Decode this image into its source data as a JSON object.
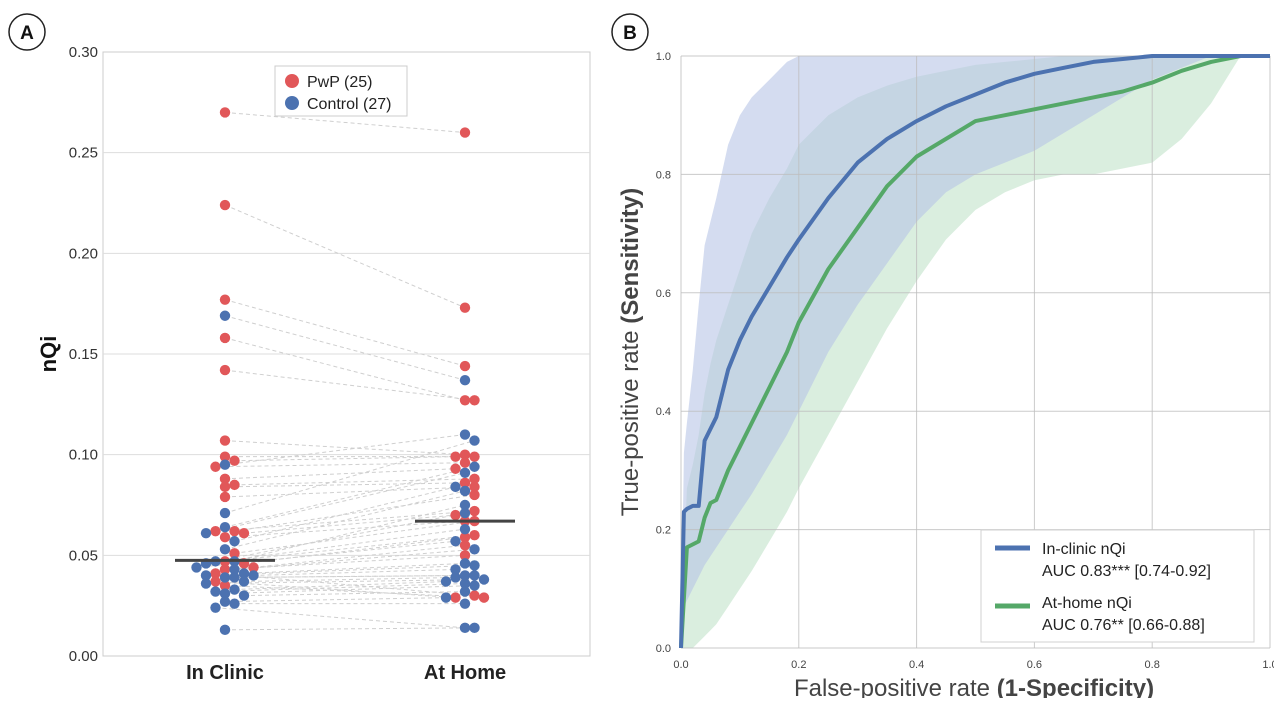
{
  "chart_data": [
    {
      "type": "scatter",
      "panel_label": "A",
      "ylabel": "nQi",
      "ylim": [
        0,
        0.3
      ],
      "yticks": [
        "0.00",
        "0.05",
        "0.10",
        "0.15",
        "0.20",
        "0.25",
        "0.30"
      ],
      "categories": [
        "In Clinic",
        "At Home"
      ],
      "legend": [
        {
          "label": "PwP (25)",
          "color": "#E15759"
        },
        {
          "label": "Control (27)",
          "color": "#4C72B0"
        }
      ],
      "medians": {
        "In Clinic": 0.0475,
        "At Home": 0.067
      },
      "series": [
        {
          "name": "PwP (25)",
          "in_clinic": [
            0.27,
            0.224,
            0.177,
            0.158,
            0.142,
            0.107,
            0.099,
            0.097,
            0.094,
            0.088,
            0.085,
            0.084,
            0.079,
            0.062,
            0.062,
            0.061,
            0.059,
            0.051,
            0.047,
            0.046,
            0.044,
            0.043,
            0.041,
            0.037,
            0.035
          ],
          "at_home": [
            0.26,
            0.173,
            0.144,
            0.127,
            0.127,
            0.1,
            0.099,
            0.099,
            0.096,
            0.093,
            0.088,
            0.086,
            0.084,
            0.08,
            0.072,
            0.07,
            0.067,
            0.067,
            0.06,
            0.059,
            0.055,
            0.05,
            0.03,
            0.029,
            0.029
          ]
        },
        {
          "name": "Control (27)",
          "in_clinic": [
            0.169,
            0.095,
            0.071,
            0.064,
            0.061,
            0.057,
            0.053,
            0.047,
            0.047,
            0.046,
            0.044,
            0.043,
            0.041,
            0.04,
            0.04,
            0.039,
            0.039,
            0.037,
            0.036,
            0.033,
            0.032,
            0.031,
            0.03,
            0.027,
            0.026,
            0.024,
            0.013
          ],
          "at_home": [
            0.137,
            0.11,
            0.107,
            0.094,
            0.091,
            0.084,
            0.082,
            0.075,
            0.071,
            0.063,
            0.057,
            0.053,
            0.046,
            0.045,
            0.043,
            0.04,
            0.04,
            0.039,
            0.038,
            0.037,
            0.036,
            0.035,
            0.032,
            0.029,
            0.026,
            0.014,
            0.014
          ]
        }
      ]
    },
    {
      "type": "line",
      "panel_label": "B",
      "xlabel_prefix": "False-positive rate ",
      "xlabel_bold": "(1-Specificity)",
      "ylabel_prefix": "True-positive rate ",
      "ylabel_bold": "(Sensitivity)",
      "xlim": [
        0,
        1.0
      ],
      "ylim": [
        0,
        1.0
      ],
      "xticks": [
        "0.0",
        "0.2",
        "0.4",
        "0.6",
        "0.8",
        "1.0"
      ],
      "yticks": [
        "0.0",
        "0.2",
        "0.4",
        "0.6",
        "0.8",
        "1.0"
      ],
      "grid": true,
      "legend_position": "bottom-right",
      "series": [
        {
          "name": "In-clinic nQi",
          "auc_text": "AUC 0.83*** [0.74-0.92]",
          "color": "#4C72B0",
          "band_color": "#B8C4E6",
          "x": [
            0.0,
            0.005,
            0.01,
            0.02,
            0.03,
            0.04,
            0.06,
            0.08,
            0.1,
            0.12,
            0.15,
            0.18,
            0.2,
            0.25,
            0.3,
            0.35,
            0.4,
            0.45,
            0.5,
            0.55,
            0.6,
            0.65,
            0.7,
            0.75,
            0.8,
            0.85,
            0.9,
            1.0
          ],
          "y": [
            0.0,
            0.23,
            0.235,
            0.24,
            0.24,
            0.35,
            0.39,
            0.47,
            0.52,
            0.56,
            0.61,
            0.66,
            0.69,
            0.76,
            0.82,
            0.86,
            0.89,
            0.915,
            0.935,
            0.955,
            0.97,
            0.98,
            0.99,
            0.995,
            1.0,
            1.0,
            1.0,
            1.0
          ],
          "upper": [
            0.0,
            0.33,
            0.38,
            0.47,
            0.58,
            0.68,
            0.76,
            0.85,
            0.9,
            0.93,
            0.96,
            0.99,
            1.0,
            1.0,
            1.0,
            1.0,
            1.0,
            1.0,
            1.0,
            1.0,
            1.0,
            1.0,
            1.0,
            1.0,
            1.0,
            1.0,
            1.0,
            1.0
          ],
          "lower": [
            0.0,
            0.07,
            0.08,
            0.1,
            0.12,
            0.14,
            0.17,
            0.2,
            0.23,
            0.26,
            0.31,
            0.36,
            0.4,
            0.5,
            0.58,
            0.65,
            0.72,
            0.77,
            0.8,
            0.82,
            0.84,
            0.87,
            0.9,
            0.93,
            0.96,
            0.98,
            1.0,
            1.0
          ]
        },
        {
          "name": "At-home nQi",
          "auc_text": "AUC 0.76** [0.66-0.88]",
          "color": "#55A868",
          "band_color": "#C2E3CA",
          "x": [
            0.0,
            0.01,
            0.02,
            0.03,
            0.04,
            0.05,
            0.06,
            0.08,
            0.1,
            0.12,
            0.15,
            0.18,
            0.2,
            0.25,
            0.3,
            0.35,
            0.4,
            0.45,
            0.5,
            0.55,
            0.6,
            0.65,
            0.7,
            0.75,
            0.8,
            0.85,
            0.9,
            0.95,
            1.0
          ],
          "y": [
            0.0,
            0.17,
            0.175,
            0.18,
            0.22,
            0.245,
            0.25,
            0.3,
            0.34,
            0.38,
            0.44,
            0.5,
            0.55,
            0.64,
            0.71,
            0.78,
            0.83,
            0.86,
            0.89,
            0.9,
            0.91,
            0.92,
            0.93,
            0.94,
            0.955,
            0.975,
            0.99,
            1.0,
            1.0
          ],
          "upper": [
            0.0,
            0.27,
            0.31,
            0.36,
            0.43,
            0.48,
            0.52,
            0.58,
            0.64,
            0.7,
            0.76,
            0.81,
            0.85,
            0.9,
            0.93,
            0.95,
            0.965,
            0.975,
            0.985,
            0.99,
            0.995,
            1.0,
            1.0,
            1.0,
            1.0,
            1.0,
            1.0,
            1.0,
            1.0
          ],
          "lower": [
            0.0,
            0.0,
            0.0,
            0.01,
            0.02,
            0.03,
            0.04,
            0.07,
            0.1,
            0.13,
            0.18,
            0.23,
            0.27,
            0.36,
            0.45,
            0.54,
            0.62,
            0.69,
            0.74,
            0.77,
            0.79,
            0.8,
            0.8,
            0.81,
            0.82,
            0.86,
            0.92,
            1.0,
            1.0
          ]
        }
      ]
    }
  ]
}
